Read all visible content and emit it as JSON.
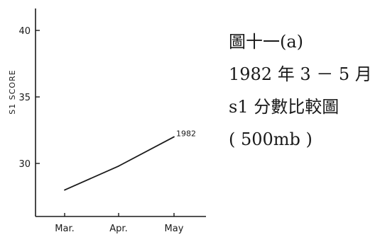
{
  "caption": {
    "line1": "圖十一(a)",
    "line2": "1982 年 3 － 5 月",
    "line3": "s1 分數比較圖",
    "line4": "( 500mb )"
  },
  "chart_data": {
    "type": "line",
    "title": "",
    "ylabel": "S1 SCORE",
    "xlabel": "",
    "categories": [
      "Mar.",
      "Apr.",
      "May"
    ],
    "series": [
      {
        "name": "1982",
        "values": [
          28.0,
          29.8,
          32.0
        ]
      }
    ],
    "yticks": [
      30,
      35,
      40
    ],
    "ylim": [
      25.5,
      42.5
    ],
    "grid": false,
    "legend": "line-end label",
    "colors": {
      "ink": "#1a1a1a"
    }
  }
}
